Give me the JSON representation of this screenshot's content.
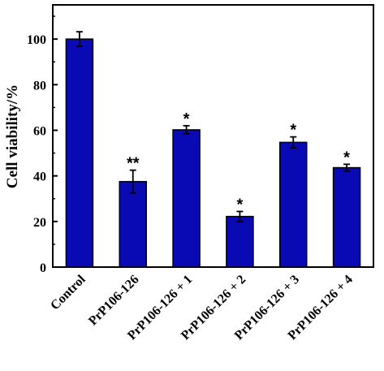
{
  "chart_data": {
    "type": "bar",
    "title": "",
    "xlabel": "",
    "ylabel": "Cell viability/%",
    "ylim": [
      0,
      115
    ],
    "yticks": [
      0,
      20,
      40,
      60,
      80,
      100
    ],
    "grid": false,
    "legend": "none",
    "categories": [
      "Control",
      "PrP106-126",
      "PrP106-126 + 1",
      "PrP106-126 + 2",
      "PrP106-126 + 3",
      "PrP106-126 + 4"
    ],
    "series": [
      {
        "values": [
          100,
          37.5,
          60.2,
          22.2,
          54.7,
          43.6
        ],
        "errors": [
          3.2,
          5.0,
          1.8,
          2.2,
          2.4,
          1.5
        ],
        "significance": [
          "",
          "**",
          "*",
          "*",
          "*",
          "*"
        ],
        "color": "#0a0ab4"
      }
    ]
  }
}
